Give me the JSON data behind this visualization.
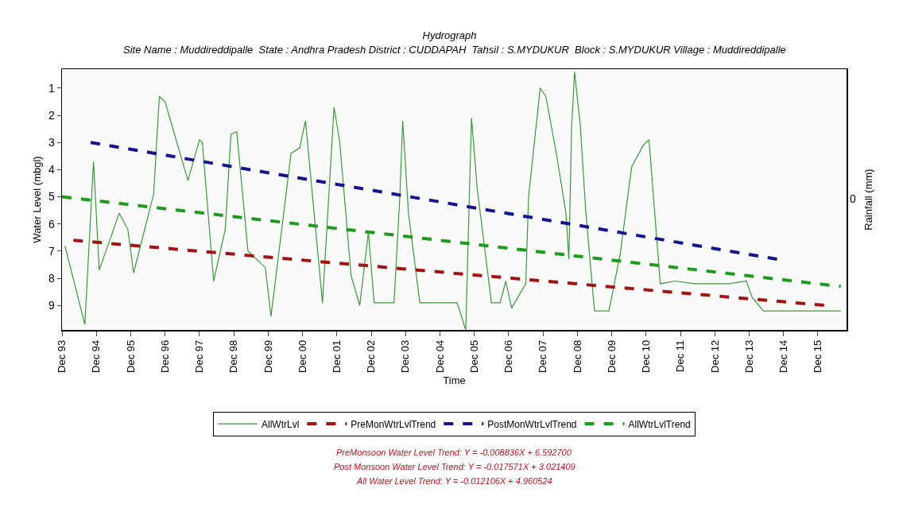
{
  "chart_data": {
    "type": "line",
    "title": "Hydrograph",
    "subtitle": "Site Name : Muddireddipalle  State : Andhra Pradesh District : CUDDAPAH  Tahsil : S.MYDUKUR  Block : S.MYDUKUR Village : Muddireddipalle",
    "xlabel": "Time",
    "ylabel": "Water Level (mbgl)",
    "y2label": "Rainfall (mm)",
    "series": [
      {
        "name": "AllWtrLvl",
        "color": "#3a983a",
        "line_style": "solid",
        "x": [
          "1994-01",
          "1994-08",
          "1994-11",
          "1995-01",
          "1995-08",
          "1995-11",
          "1996-01",
          "1996-08",
          "1996-10",
          "1996-12",
          "1997-08",
          "1997-12",
          "1998-01",
          "1998-05",
          "1998-09",
          "1998-11",
          "1999-01",
          "1999-05",
          "1999-11",
          "2000-01",
          "2000-08",
          "2000-11",
          "2001-01",
          "2001-07",
          "2001-11",
          "2002-01",
          "2002-05",
          "2002-08",
          "2002-11",
          "2003-01",
          "2003-08",
          "2003-10",
          "2003-11",
          "2004-01",
          "2004-05",
          "2005-06",
          "2005-09",
          "2005-11",
          "2006-01",
          "2006-06",
          "2006-09",
          "2006-11",
          "2007-01",
          "2007-06",
          "2007-07",
          "2007-11",
          "2008-01",
          "2008-05",
          "2008-08",
          "2008-09",
          "2008-10",
          "2008-11",
          "2009-01",
          "2009-03",
          "2009-06",
          "2009-11",
          "2010-03",
          "2010-07",
          "2010-11",
          "2011-01",
          "2011-05",
          "2011-10",
          "2012-05",
          "2013-05",
          "2013-11",
          "2014-01",
          "2014-05",
          "2016-08"
        ],
        "values": [
          6.8,
          9.7,
          3.7,
          7.7,
          5.6,
          6.2,
          7.8,
          4.9,
          1.3,
          1.5,
          4.4,
          2.9,
          3.0,
          8.1,
          6.2,
          2.7,
          2.6,
          7.0,
          7.6,
          9.4,
          3.4,
          3.2,
          2.2,
          8.9,
          1.7,
          3.0,
          7.9,
          9.0,
          6.3,
          8.9,
          8.9,
          5.0,
          2.2,
          5.6,
          8.9,
          8.9,
          9.9,
          2.1,
          4.7,
          8.9,
          8.9,
          8.1,
          9.1,
          8.2,
          5.0,
          1.0,
          1.3,
          3.6,
          5.6,
          7.3,
          2.4,
          0.4,
          2.4,
          5.6,
          9.2,
          9.2,
          7.1,
          3.9,
          3.1,
          2.9,
          8.2,
          8.1,
          8.2,
          8.2,
          8.1,
          8.7,
          9.2,
          9.2
        ]
      },
      {
        "name": "PreMonWtrLvlTrend",
        "color": "#a01414",
        "line_style": "dashed",
        "x": [
          "1994-04",
          "2016-03"
        ],
        "values": [
          6.6,
          9.0
        ]
      },
      {
        "name": "PostMonWtrLvlTrend",
        "color": "#14148c",
        "line_style": "dashed",
        "x": [
          "1994-10",
          "2014-10"
        ],
        "values": [
          3.0,
          7.3
        ]
      },
      {
        "name": "AllWtrLvlTrend",
        "color": "#1e9a1e",
        "line_style": "dashed",
        "x": [
          "1993-12",
          "2016-08"
        ],
        "values": [
          5.0,
          8.3
        ]
      }
    ],
    "xlim": [
      "1993-12",
      "2016-10"
    ],
    "xticks": [
      {
        "value": "1993-12",
        "label": "Dec 93"
      },
      {
        "value": "1994-12",
        "label": "Dec 94"
      },
      {
        "value": "1995-12",
        "label": "Dec 95"
      },
      {
        "value": "1996-12",
        "label": "Dec 96"
      },
      {
        "value": "1997-12",
        "label": "Dec 97"
      },
      {
        "value": "1998-12",
        "label": "Dec 98"
      },
      {
        "value": "1999-12",
        "label": "Dec 99"
      },
      {
        "value": "2000-12",
        "label": "Dec 00"
      },
      {
        "value": "2001-12",
        "label": "Dec 01"
      },
      {
        "value": "2002-12",
        "label": "Dec 02"
      },
      {
        "value": "2003-12",
        "label": "Dec 03"
      },
      {
        "value": "2004-12",
        "label": "Dec 04"
      },
      {
        "value": "2005-12",
        "label": "Dec 05"
      },
      {
        "value": "2006-12",
        "label": "Dec 06"
      },
      {
        "value": "2007-12",
        "label": "Dec 07"
      },
      {
        "value": "2008-12",
        "label": "Dec 08"
      },
      {
        "value": "2009-12",
        "label": "Dec 09"
      },
      {
        "value": "2010-12",
        "label": "Dec 10"
      },
      {
        "value": "2011-12",
        "label": "Dec 11"
      },
      {
        "value": "2012-12",
        "label": "Dec 12"
      },
      {
        "value": "2013-12",
        "label": "Dec 13"
      },
      {
        "value": "2014-12",
        "label": "Dec 14"
      },
      {
        "value": "2015-12",
        "label": "Dec 15"
      }
    ],
    "ylim": [
      9.9,
      0.3
    ],
    "yticks": [
      1,
      2,
      3,
      4,
      5,
      6,
      7,
      8,
      9
    ],
    "grid": false,
    "legend": "bottom",
    "marker": "none",
    "annotations": [
      "0",
      "PreMonsoon Water Level Trend: Y = -0.008836X + 6.592700",
      "Post Monsoon Water Level Trend: Y = -0.017571X + 3.021409",
      "All Water Level Trend: Y = -0.012106X + 4.960524"
    ]
  }
}
